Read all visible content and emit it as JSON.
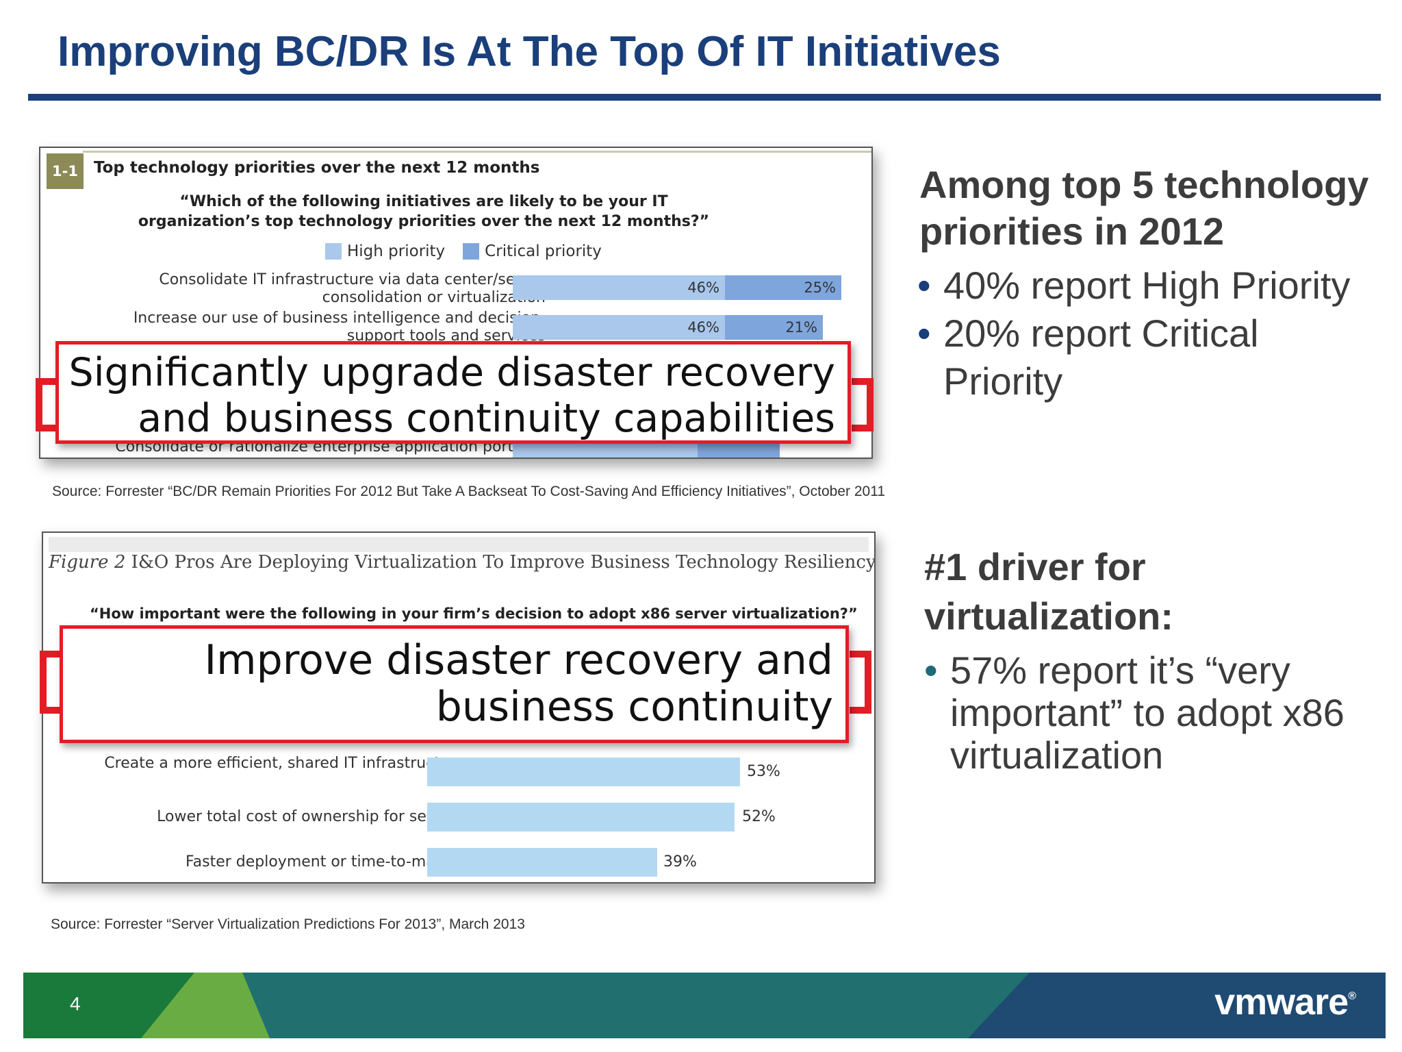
{
  "slide": {
    "title": "Improving BC/DR Is At The Top Of IT Initiatives",
    "page_number": "4",
    "logo": "vmware",
    "accent_color": "#1a3f7a",
    "highlight_color": "#e31d25"
  },
  "figure1": {
    "tag": "1-1",
    "title": "Top technology priorities over the next 12 months",
    "question": "“Which of the following initiatives are likely to be your IT organization’s top technology priorities over the next 12 months?”",
    "legend": [
      {
        "label": "High priority",
        "color": "#a9c8ec"
      },
      {
        "label": "Critical priority",
        "color": "#7fa6dc"
      }
    ],
    "rows": [
      {
        "label": "Consolidate IT infrastructure via data center/server consolidation or virtualization",
        "high": "46%",
        "critical": "25%"
      },
      {
        "label": "Increase our use of business intelligence and decision-support tools and services",
        "high": "46%",
        "critical": "21%"
      }
    ],
    "callout": "Significantly upgrade disaster recovery and business continuity capabilities",
    "hidden_row": "Consolidate or rationalize enterprise application portfolio"
  },
  "source1": "Source: Forrester “BC/DR Remain Priorities For 2012 But Take A Backseat To Cost-Saving And Efficiency Initiatives”, October 2011",
  "figure2": {
    "fignum": "Figure 2",
    "title": "I&O Pros Are Deploying Virtualization To Improve Business Technology Resiliency",
    "question": "“How important were the following in your firm’s decision to adopt x86 server virtualization?”",
    "callout": "Improve disaster recovery and business continuity",
    "rows": [
      {
        "label": "Create a more efficient, shared IT infrastructure",
        "value": "53%"
      },
      {
        "label": "Lower total cost of ownership for servers",
        "value": "52%"
      },
      {
        "label": "Faster deployment or time-to-market",
        "value": "39%"
      }
    ]
  },
  "source2": "Source: Forrester “Server Virtualization Predictions For 2013”, March 2013",
  "side1": {
    "heading": "Among top 5 technology priorities in 2012",
    "bullets": [
      "40% report High Priority",
      "20% report Critical Priority"
    ]
  },
  "side2": {
    "heading": "#1 driver for virtualization:",
    "bullets": [
      "57% report it’s “very important” to adopt x86 virtualization"
    ]
  }
}
